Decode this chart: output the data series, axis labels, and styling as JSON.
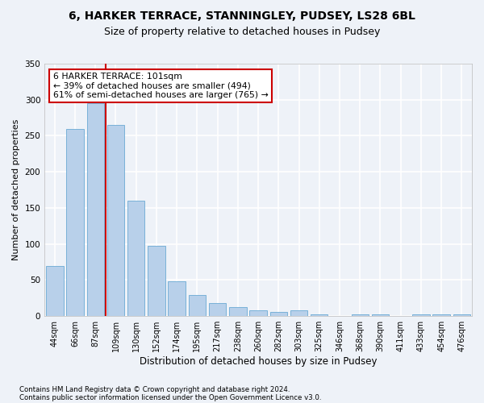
{
  "title1": "6, HARKER TERRACE, STANNINGLEY, PUDSEY, LS28 6BL",
  "title2": "Size of property relative to detached houses in Pudsey",
  "xlabel": "Distribution of detached houses by size in Pudsey",
  "ylabel": "Number of detached properties",
  "categories": [
    "44sqm",
    "66sqm",
    "87sqm",
    "109sqm",
    "130sqm",
    "152sqm",
    "174sqm",
    "195sqm",
    "217sqm",
    "238sqm",
    "260sqm",
    "282sqm",
    "303sqm",
    "325sqm",
    "346sqm",
    "368sqm",
    "390sqm",
    "411sqm",
    "433sqm",
    "454sqm",
    "476sqm"
  ],
  "values": [
    70,
    260,
    295,
    265,
    160,
    98,
    48,
    29,
    18,
    13,
    8,
    6,
    8,
    3,
    0,
    3,
    3,
    0,
    3,
    2,
    3
  ],
  "bar_color": "#b8d0ea",
  "bar_edge_color": "#6aaad4",
  "marker_label_line1": "6 HARKER TERRACE: 101sqm",
  "marker_label_line2": "← 39% of detached houses are smaller (494)",
  "marker_label_line3": "61% of semi-detached houses are larger (765) →",
  "annotation_box_color": "#ffffff",
  "annotation_box_edge": "#cc0000",
  "marker_line_color": "#cc0000",
  "footer1": "Contains HM Land Registry data © Crown copyright and database right 2024.",
  "footer2": "Contains public sector information licensed under the Open Government Licence v3.0.",
  "ylim": [
    0,
    350
  ],
  "yticks": [
    0,
    50,
    100,
    150,
    200,
    250,
    300,
    350
  ],
  "background_color": "#eef2f8",
  "grid_color": "#ffffff",
  "title1_fontsize": 10,
  "title2_fontsize": 9,
  "xlabel_fontsize": 8.5,
  "ylabel_fontsize": 8
}
